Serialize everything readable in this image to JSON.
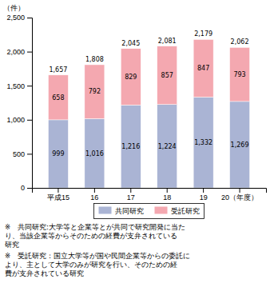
{
  "chart_data": {
    "type": "bar",
    "stacked": true,
    "data_labels": true,
    "grid": false,
    "legend": "bottom",
    "ylabel": "（件）",
    "categories": [
      "平成15",
      "16",
      "17",
      "18",
      "19",
      "20（年度）"
    ],
    "series": [
      {
        "name": "共同研究",
        "color": "#aab4d4",
        "values": [
          999,
          1016,
          1216,
          1224,
          1332,
          1269
        ],
        "value_labels": [
          "999",
          "1,016",
          "1,216",
          "1,224",
          "1,332",
          "1,269"
        ]
      },
      {
        "name": "受託研究",
        "color": "#f4a8b0",
        "values": [
          658,
          792,
          829,
          857,
          847,
          793
        ],
        "value_labels": [
          "658",
          "792",
          "829",
          "857",
          "847",
          "793"
        ]
      }
    ],
    "totals": [
      1657,
      1808,
      2045,
      2081,
      2179,
      2062
    ],
    "total_labels": [
      "1,657",
      "1,808",
      "2,045",
      "2,081",
      "2,179",
      "2,062"
    ],
    "ylim": [
      0,
      2500
    ],
    "yticks": [
      0,
      500,
      {
        "value": 1000,
        "label": "1,000"
      },
      {
        "value": 1500,
        "label": "1,500"
      },
      {
        "value": 2000,
        "label": "2,000"
      },
      {
        "value": 2500,
        "label": "2,500"
      }
    ],
    "annotations": [
      [
        "※　共同研究:大学等と企業等とが共同で研究開発に当た",
        "り、当該企業等からそのための経費が支弁されている",
        "研究"
      ],
      [
        "※　受託研究：国立大学等が国や民間企業等からの委託に",
        "より、主として大学のみが研究を行い、そのための経",
        "費が支弁されている研究"
      ]
    ]
  }
}
